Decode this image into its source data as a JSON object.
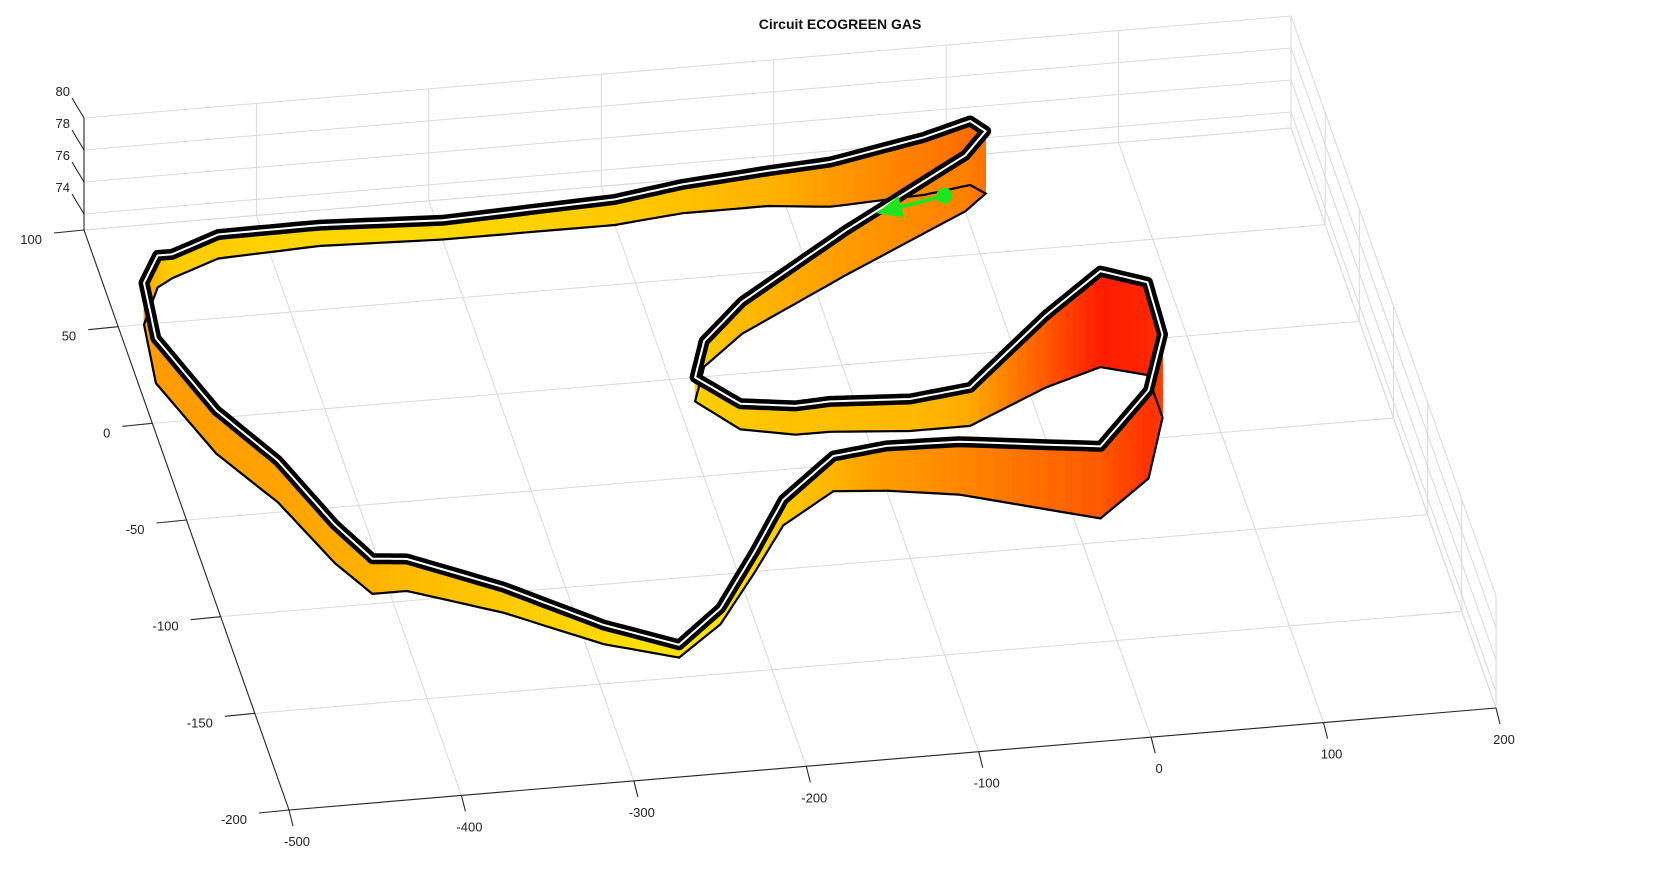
{
  "chart_data": {
    "type": "3d-surface-line",
    "title": "Circuit ECOGREEN GAS",
    "xlabel": "",
    "ylabel": "",
    "zlabel": "",
    "x_ticks": [
      "-500",
      "-400",
      "-300",
      "-200",
      "-100",
      "0",
      "100",
      "200"
    ],
    "y_ticks": [
      "-200",
      "-150",
      "-100",
      "-50",
      "0",
      "50",
      "100"
    ],
    "z_ticks": [
      "74",
      "76",
      "78",
      "80"
    ],
    "xlim": [
      -500,
      200
    ],
    "ylim": [
      -200,
      100
    ],
    "zlim": [
      73,
      80
    ],
    "grid": true,
    "colormap": "autumn (red = high, yellow = low)",
    "track_line_color": "#000000",
    "track_center_color": "#ffffff",
    "marker_color": "#1ee61e",
    "track": {
      "x": [
        -460,
        -430,
        -370,
        -300,
        -200,
        -160,
        -110,
        -75,
        -20,
        8,
        15,
        0,
        -80,
        -150,
        -178,
        -190,
        -170,
        -140,
        -120,
        -75,
        -40,
        10,
        45,
        70,
        70,
        50,
        15,
        -60,
        -100,
        -130,
        -165,
        -190,
        -220,
        -250,
        -290,
        -340,
        -390,
        -410,
        -425,
        -445,
        -470,
        -490,
        -485,
        -470
      ],
      "y": [
        72,
        80,
        82,
        80,
        80,
        83,
        83,
        80,
        82,
        85,
        80,
        72,
        45,
        20,
        5,
        -12,
        -28,
        -33,
        -33,
        -36,
        -36,
        -20,
        -12,
        -18,
        -40,
        -70,
        -88,
        -70,
        -65,
        -63,
        -78,
        -100,
        -125,
        -140,
        -130,
        -110,
        -95,
        -95,
        -78,
        -45,
        -18,
        20,
        50,
        68
      ],
      "z": [
        74.5,
        74.5,
        74.3,
        74.2,
        74.6,
        74.8,
        75.2,
        75.8,
        76.6,
        77.0,
        76.9,
        76.5,
        75.8,
        75.0,
        74.6,
        74.5,
        74.6,
        74.8,
        74.9,
        75.0,
        75.4,
        77.5,
        79.0,
        78.8,
        78.2,
        78.5,
        77.5,
        76.3,
        75.8,
        75.2,
        74.6,
        74.3,
        74.0,
        73.8,
        74.2,
        74.6,
        75.0,
        75.2,
        75.4,
        75.6,
        75.7,
        75.8,
        75.6,
        75.0
      ]
    },
    "marker": {
      "x": -22,
      "y": 47,
      "z": 77.2,
      "direction_x": -42,
      "direction_y": -6
    }
  }
}
